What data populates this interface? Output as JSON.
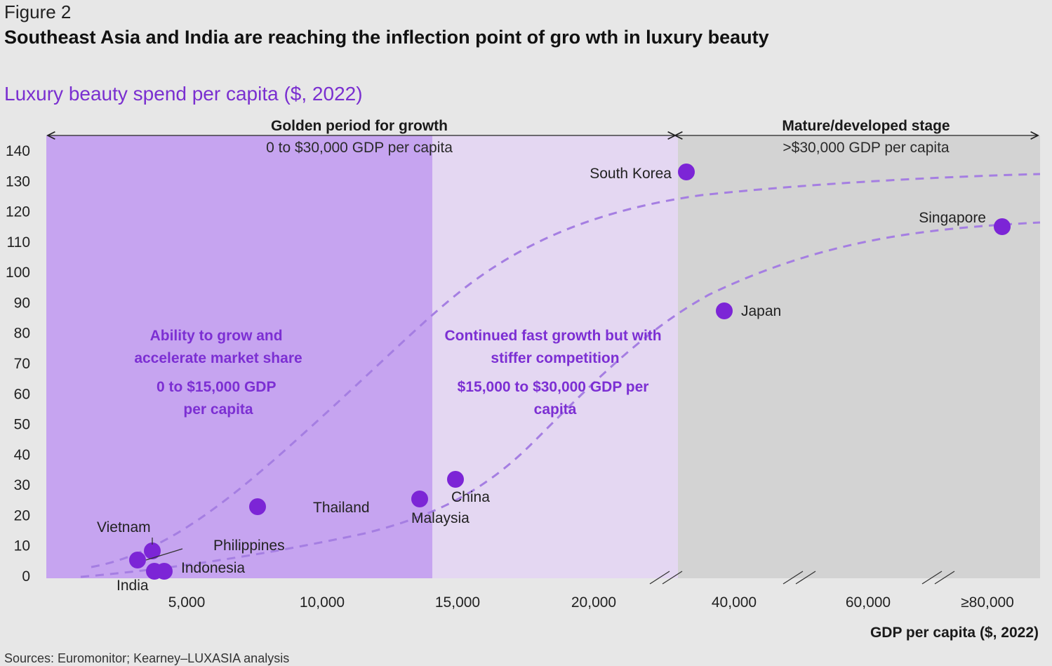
{
  "figure_label": "Figure 2",
  "title": "Southeast Asia and India are reaching the inflection point of gro wth in luxury beauty",
  "subtitle": "Luxury beauty spend per capita ($, 2022)",
  "sources": "Sources: Euromonitor; Kearney–LUXASIA analysis",
  "colors": {
    "zone_early": "#c6a4f0",
    "zone_mid": "#e4d7f2",
    "zone_mature": "#d3d3d3",
    "point": "#7c25d6",
    "curve": "#a57ee2",
    "annotation": "#7c2fd3"
  },
  "chart_data": {
    "type": "scatter",
    "xlabel": "GDP per capita ($, 2022)",
    "ylabel": "",
    "ylim": [
      0,
      140
    ],
    "y_ticks": [
      0,
      10,
      20,
      30,
      40,
      50,
      60,
      70,
      80,
      90,
      100,
      110,
      120,
      130,
      140
    ],
    "x_tick_labels": [
      "5,000",
      "10,000",
      "15,000",
      "20,000",
      "40,000",
      "60,000",
      "≥80,000"
    ],
    "x_axis_note": "broken (non-linear) x-axis; breaks shown by double slashes",
    "grid": false,
    "legend": "none",
    "points": [
      {
        "label": "India",
        "x": 2400,
        "y": 5
      },
      {
        "label": "Vietnam",
        "x": 4000,
        "y": 8
      },
      {
        "label": "Indonesia",
        "x": 4300,
        "y": 2
      },
      {
        "label": "",
        "x": 4100,
        "y": 2
      },
      {
        "label": "Philippines",
        "x": 3600,
        "y": 6
      },
      {
        "label": "Thailand",
        "x": 7800,
        "y": 23
      },
      {
        "label": "Malaysia",
        "x": 13500,
        "y": 26
      },
      {
        "label": "China",
        "x": 15000,
        "y": 32
      },
      {
        "label": "South Korea",
        "x": 33000,
        "y": 133
      },
      {
        "label": "Japan",
        "x": 34000,
        "y": 88
      },
      {
        "label": "Singapore",
        "x": 82000,
        "y": 115
      }
    ],
    "curves": [
      {
        "style": "dashed",
        "description": "upper S-curve"
      },
      {
        "style": "dashed",
        "description": "lower S-curve"
      }
    ],
    "zones": [
      {
        "header": "Golden period for growth",
        "range_label": "0 to $30,000 GDP per capita"
      },
      {
        "header": "Mature/developed stage",
        "range_label": ">$30,000 GDP per capita"
      }
    ],
    "annotations": [
      {
        "heading": "Ability to grow and accelerate market share",
        "range": "0 to $15,000 GDP per capita"
      },
      {
        "heading": "Continued fast growth but with stiffer competition",
        "range": "$15,000 to $30,000 GDP per capita"
      }
    ]
  }
}
